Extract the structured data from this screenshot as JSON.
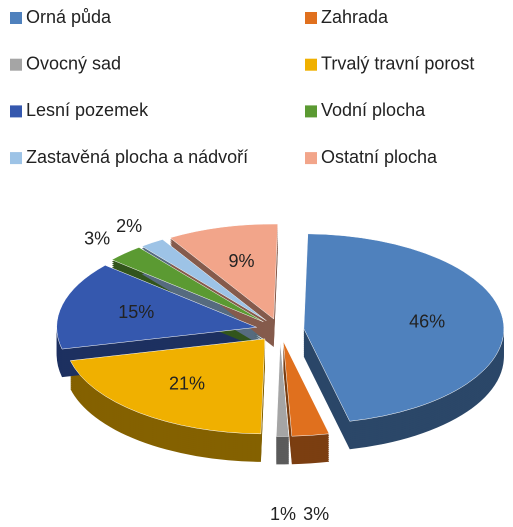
{
  "chart_data": {
    "type": "pie",
    "categories": [
      "Orná půda",
      "Zahrada",
      "Ovocný sad",
      "Trvalý travní porost",
      "Lesní pozemek",
      "Vodní plocha",
      "Zastavěná plocha a nádvoří",
      "Ostatní plocha"
    ],
    "values": [
      46,
      3,
      1,
      21,
      15,
      3,
      2,
      9
    ],
    "value_labels": [
      "46%",
      "3%",
      "1%",
      "21%",
      "15%",
      "3%",
      "2%",
      "9%"
    ],
    "colors": [
      "#4f81bd",
      "#e0701e",
      "#a5a5a5",
      "#f0b000",
      "#3558ae",
      "#5b9a32",
      "#9dc3e6",
      "#f2a58a"
    ],
    "legend": "top"
  }
}
